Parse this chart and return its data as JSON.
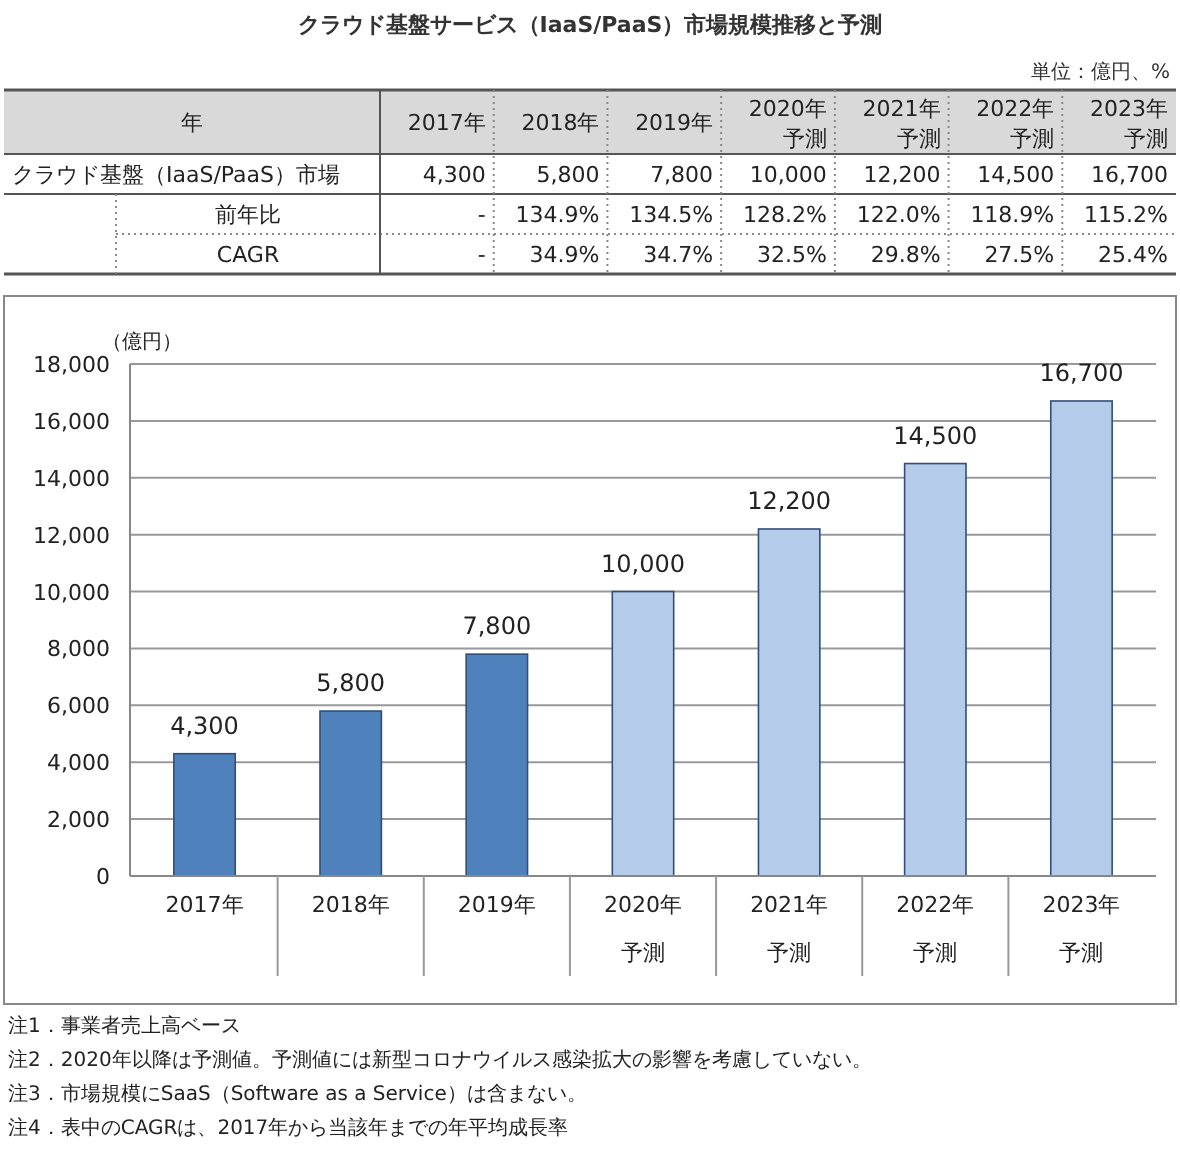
{
  "chart_data": [
    {
      "type": "other",
      "title": "クラウド基盤サービス（IaaS/PaaS）市場規模推移と予測",
      "subtitle": "単位：億円、%",
      "annotations": [
        "年",
        "2017年",
        "2018年",
        "2019年",
        "2020年予測",
        "2021年予測",
        "2022年予測",
        "2023年予測",
        "クラウド基盤（IaaS/PaaS）市場",
        "4,300",
        "5,800",
        "7,800",
        "10,000",
        "12,200",
        "14,500",
        "16,700",
        "前年比",
        "-",
        "134.9%",
        "134.5%",
        "128.2%",
        "122.0%",
        "118.9%",
        "115.2%",
        "CAGR",
        "-",
        "34.9%",
        "34.7%",
        "32.5%",
        "29.8%",
        "27.5%",
        "25.4%"
      ]
    },
    {
      "type": "bar",
      "ylabel": "（億円）",
      "categories": [
        "2017年",
        "2018年",
        "2019年",
        "2020年予測",
        "2021年予測",
        "2022年予測",
        "2023年予測"
      ],
      "values": [
        4300,
        5800,
        7800,
        10000,
        12200,
        14500,
        16700
      ],
      "value_labels": [
        "4,300",
        "5,800",
        "7,800",
        "10,000",
        "12,200",
        "14,500",
        "16,700"
      ],
      "colors": [
        "#4f81bd",
        "#4f81bd",
        "#4f81bd",
        "#b4cbea",
        "#b4cbea",
        "#b4cbea",
        "#b4cbea"
      ],
      "ylim": [
        0,
        18000
      ],
      "yticks": [
        {
          "value": 0,
          "label": "0"
        },
        {
          "value": 2000,
          "label": "2,000"
        },
        {
          "value": 4000,
          "label": "4,000"
        },
        {
          "value": 6000,
          "label": "6,000"
        },
        {
          "value": 8000,
          "label": "8,000"
        },
        {
          "value": 10000,
          "label": "10,000"
        },
        {
          "value": 12000,
          "label": "12,000"
        },
        {
          "value": 14000,
          "label": "14,000"
        },
        {
          "value": 16000,
          "label": "16,000"
        },
        {
          "value": 18000,
          "label": "18,000"
        }
      ],
      "grid": "y",
      "annotations": [
        "注1．事業者売上高ベース",
        "注2．2020年以降は予測値。予測値には新型コロナウイルス感染拡大の影響を考慮していない。",
        "注3．市場規模にSaaS（Software as a Service）は含まない。",
        "注4．表中のCAGRは、2017年から当該年までの年平均成長率"
      ]
    }
  ]
}
